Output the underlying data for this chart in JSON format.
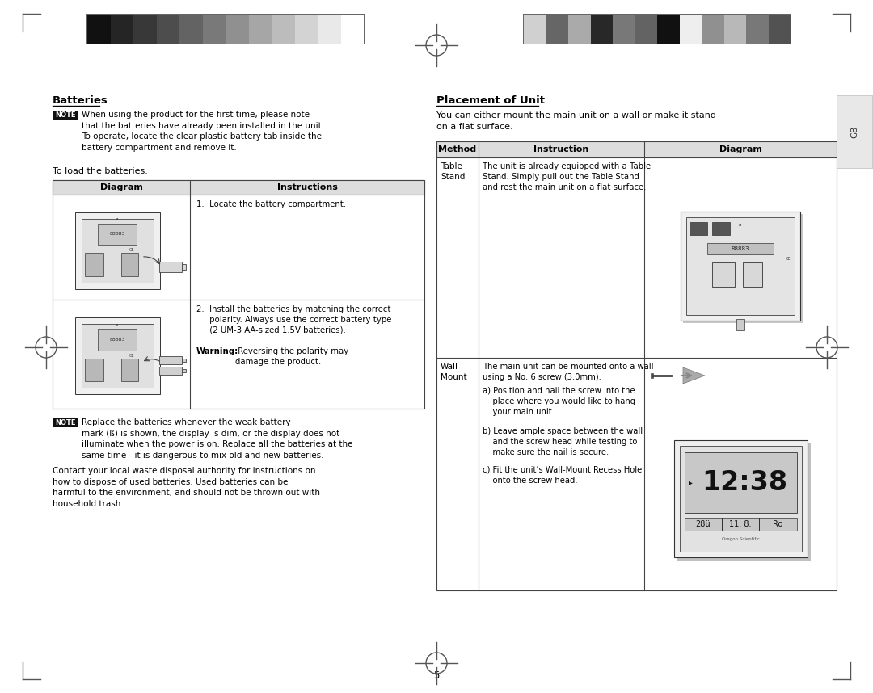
{
  "page_bg": "#ffffff",
  "header_bar_colors_left": [
    "#111111",
    "#252525",
    "#383838",
    "#4d4d4d",
    "#636363",
    "#797979",
    "#909090",
    "#a6a6a6",
    "#bcbcbc",
    "#d3d3d3",
    "#e9e9e9",
    "#ffffff"
  ],
  "header_bar_colors_right": [
    "#d0d0d0",
    "#666666",
    "#aaaaaa",
    "#282828",
    "#787878",
    "#636363",
    "#111111",
    "#eeeeee",
    "#909090",
    "#b8b8b8",
    "#787878",
    "#525252"
  ],
  "gb_tab_color": "#e8e8e8",
  "note_box_color": "#1a1a1a",
  "left_section_title": "Batteries",
  "right_section_title": "Placement of Unit",
  "left_table_headers": [
    "Diagram",
    "Instructions"
  ],
  "right_table_headers": [
    "Method",
    "Instruction",
    "Diagram"
  ],
  "page_number": "5",
  "batteries_note_text": "When using the product for the first time, please note\nthat the batteries have already been installed in the unit.\nTo operate, locate the clear plastic battery tab inside the\nbattery compartment and remove it.",
  "to_load": "To load the batteries:",
  "placement_intro": "You can either mount the main unit on a wall or make it stand\non a flat surface.",
  "table_stand_method": "Table\nStand",
  "table_stand_instruction": "The unit is already equipped with a Table\nStand. Simply pull out the Table Stand\nand rest the main unit on a flat surface.",
  "wall_mount_method": "Wall\nMount",
  "wall_mount_instr_line1": "The main unit can be mounted onto a wall\nusing a No. 6 screw (3.0mm).",
  "wall_mount_instr_line2": "a) Position and nail the screw into the\n    place where you would like to hang\n    your main unit.",
  "wall_mount_instr_line3": "b) Leave ample space between the wall\n    and the screw head while testing to\n    make sure the nail is secure.",
  "wall_mount_instr_line4": "c) Fit the unit’s Wall-Mount Recess Hole\n    onto the screw head.",
  "instruction1": "1.  Locate the battery compartment.",
  "instruction2_main": "2.  Install the batteries by matching the correct\n     polarity. Always use the correct battery type\n     (2 UM-3 AA-sized 1.5V batteries).",
  "instruction2_warn1": "Warning:",
  "instruction2_warn2": " Reversing the polarity may\ndamage the product.",
  "note_text2": "Replace the batteries whenever the weak battery\nmark (ß) is shown, the display is dim, or the display does not\nilluminate when the power is on. Replace all the batteries at the\nsame time - it is dangerous to mix old and new batteries.",
  "contact_text": "Contact your local waste disposal authority for instructions on\nhow to dispose of used batteries. Used batteries can be\nharmful to the environment, and should not be thrown out with\nhousehold trash.",
  "crosshair_color": "#555555"
}
